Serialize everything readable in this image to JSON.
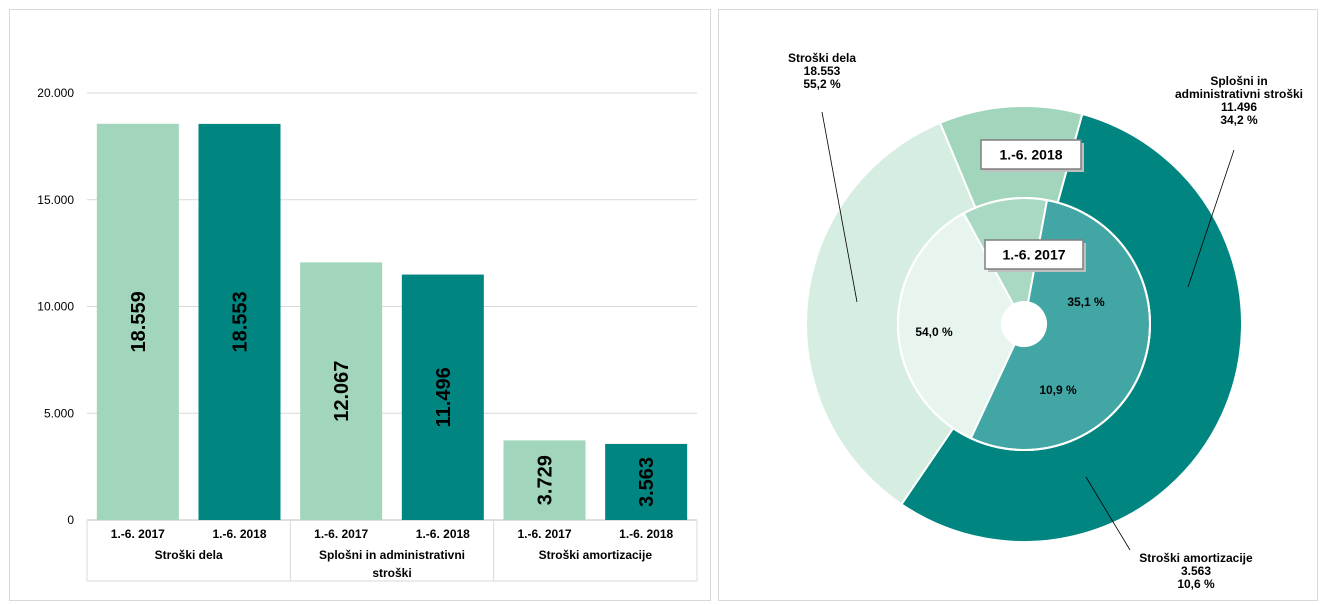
{
  "colors": {
    "light": "#a1d6bc",
    "dark": "#008580",
    "pie_outer": [
      "#008580",
      "#d6ede2",
      "#a1d6bc"
    ],
    "pie_inner": [
      "#41a6a4",
      "#e7f5ee",
      "#a9d9c2"
    ],
    "grid": "#d9d9d9",
    "axis": "#bfbfbf"
  },
  "chart_data": [
    {
      "type": "bar",
      "title": "",
      "xlabel": "",
      "ylabel": "",
      "ylim": [
        0,
        20000
      ],
      "yticks": [
        {
          "value": 0,
          "label": "0"
        },
        {
          "value": 5000,
          "label": "5.000"
        },
        {
          "value": 10000,
          "label": "10.000"
        },
        {
          "value": 15000,
          "label": "15.000"
        },
        {
          "value": 20000,
          "label": "20.000"
        }
      ],
      "grid": true,
      "groups": [
        {
          "name": "Stroški dela",
          "lines": [
            "Stroški dela"
          ]
        },
        {
          "name": "Splošni in administrativni stroški",
          "lines": [
            "Splošni in administrativni",
            "stroški"
          ]
        },
        {
          "name": "Stroški amortizacije",
          "lines": [
            "Stroški amortizacije"
          ]
        }
      ],
      "series": [
        {
          "name": "1.-6. 2017",
          "values": [
            18559,
            12067,
            3729
          ],
          "labels": [
            "18.559",
            "12.067",
            "3.729"
          ]
        },
        {
          "name": "1.-6. 2018",
          "values": [
            18553,
            11496,
            3563
          ],
          "labels": [
            "18.553",
            "11.496",
            "3.563"
          ]
        }
      ]
    },
    {
      "type": "pie",
      "rings": [
        {
          "label": "1.-6. 2018",
          "values": [
            18553,
            11496,
            3563
          ],
          "percents": [
            "55,2 %",
            "34,2 %",
            "10,6 %"
          ]
        },
        {
          "label": "1.-6. 2017",
          "values": [
            18559,
            12067,
            3729
          ],
          "percents": [
            "54,0 %",
            "35,1 %",
            "10,9 %"
          ]
        }
      ],
      "callouts": [
        {
          "lines": [
            "Stroški dela",
            "18.553",
            "55,2 %"
          ]
        },
        {
          "lines": [
            "Splošni in",
            "administrativni stroški",
            "11.496",
            "34,2 %"
          ]
        },
        {
          "lines": [
            "Stroški amortizacije",
            "3.563",
            "10,6 %"
          ]
        }
      ]
    }
  ]
}
